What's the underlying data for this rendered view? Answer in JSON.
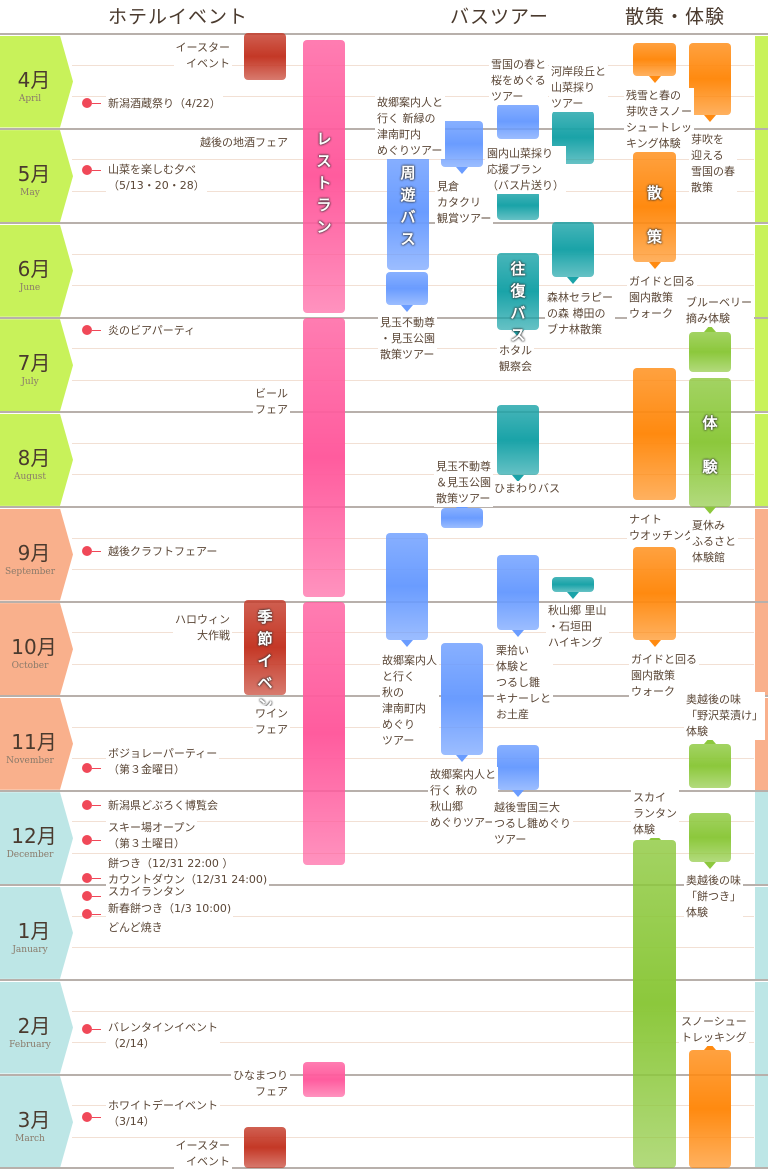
{
  "header": {
    "hotel": "ホテルイベント",
    "bus": "バスツアー",
    "walk": "散策・体験"
  },
  "colors": {
    "spring": "#c8f25a",
    "autumn": "#f9b08c",
    "winter": "#bde6e6",
    "pink": "#ff5c9e",
    "red": "#c43826",
    "blue": "#6a9cff",
    "teal": "#1aa3a8",
    "orange": "#ff8a10",
    "green": "#8cc83c"
  },
  "months": [
    {
      "jp": "4月",
      "en": "April"
    },
    {
      "jp": "5月",
      "en": "May"
    },
    {
      "jp": "6月",
      "en": "June"
    },
    {
      "jp": "7月",
      "en": "July"
    },
    {
      "jp": "8月",
      "en": "August"
    },
    {
      "jp": "9月",
      "en": "September"
    },
    {
      "jp": "10月",
      "en": "October"
    },
    {
      "jp": "11月",
      "en": "November"
    },
    {
      "jp": "12月",
      "en": "December"
    },
    {
      "jp": "1月",
      "en": "January"
    },
    {
      "jp": "2月",
      "en": "February"
    },
    {
      "jp": "3月",
      "en": "March"
    }
  ],
  "hotel": {
    "restaurant": "レ\nス\nト\nラ\nン",
    "season": "季\n節\nイ\nベ\nン\nト",
    "events": [
      "イースター\nイベント",
      "新潟酒蔵祭り（4/22）",
      "越後の地酒フェア",
      "山菜を楽しむ夕べ\n（5/13・20・28）",
      "炎のビアパーティ",
      "ビール\nフェア",
      "越後クラフトフェアー",
      "ハロウィン\n大作戦",
      "ワイン\nフェア",
      "ボジョレーパーティー\n（第３金曜日）",
      "新潟県どぶろく博覧会",
      "スキー場オープン\n（第３土曜日）",
      "餅つき（12/31 22:00 ）",
      "カウントダウン（12/31 24:00)",
      "スカイランタン",
      "新春餅つき（1/3 10:00)",
      "どんど焼き",
      "バレンタインイベント\n（2/14）",
      "ひなまつり\nフェア",
      "ホワイトデーイベント\n（3/14）",
      "イースター\nイベント"
    ]
  },
  "bus": {
    "shuyu": "周\n遊\nバ\nス",
    "ofuku": "往\n復\nバ\nス",
    "tours": [
      "故郷案内人と\n行く 新緑の\n津南町内\nめぐりツアー",
      "見倉\nカタクリ\n観賞ツアー",
      "雪国の春と\n桜をめぐる\nツアー",
      "園内山菜採り\n応援プラン\n（バス片送り）",
      "河岸段丘と\n山菜採り\nツアー",
      "森林セラピー\nの森 樽田の\nブナ林散策",
      "見玉不動尊\n・見玉公園\n散策ツアー",
      "ホタル\n観察会",
      "ひまわりバス",
      "見玉不動尊\n＆見玉公園\n散策ツアー",
      "故郷案内人\nと行く\n秋の\n津南町内\nめぐり\nツアー",
      "栗拾い\n体験と\nつるし雛\nキナーレと\nお土産",
      "秋山郷 里山\n・石垣田\nハイキング",
      "故郷案内人と\n行く 秋の\n秋山郷\nめぐりツアー",
      "越後雪国三大\nつるし雛めぐり\nツアー"
    ]
  },
  "walk": {
    "sansaku": "散\n\n策",
    "taiken": "体\n\n験",
    "items": [
      "残雪と春の\n芽吹きスノー\nシュートレッ\nキング体験",
      "芽吹を\n迎える\n雪国の春\n散策",
      "ガイドと回る\n園内散策\nウォーク",
      "ブルーベリー\n摘み体験",
      "ナイト\nウオッチング",
      "夏休み\nふるさと\n体験館",
      "ガイドと回る\n園内散策\nウォーク",
      "奥越後の味\n「野沢菜漬け」\n体験",
      "スカイ\nランタン\n体験",
      "奥越後の味\n「餅つき」\n体験",
      "スノーシュー\nトレッキング"
    ]
  }
}
